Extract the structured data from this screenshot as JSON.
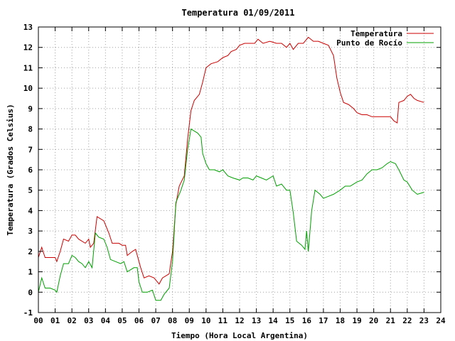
{
  "chart_data": {
    "type": "line",
    "title": "Temperatura 01/09/2011",
    "xlabel": "Tiempo (Hora Local Argentina)",
    "ylabel": "Temperatura (Grados Celsius)",
    "xlim": [
      0,
      24
    ],
    "ylim": [
      -1,
      13
    ],
    "x_ticks": [
      0,
      1,
      2,
      3,
      4,
      5,
      6,
      7,
      8,
      9,
      10,
      11,
      12,
      13,
      14,
      15,
      16,
      17,
      18,
      19,
      20,
      21,
      22,
      23,
      24
    ],
    "x_tick_labels": [
      "00",
      "01",
      "02",
      "03",
      "04",
      "05",
      "06",
      "07",
      "08",
      "09",
      "10",
      "11",
      "12",
      "13",
      "14",
      "15",
      "16",
      "17",
      "18",
      "19",
      "20",
      "21",
      "22",
      "23",
      "24"
    ],
    "y_ticks": [
      -1,
      0,
      1,
      2,
      3,
      4,
      5,
      6,
      7,
      8,
      9,
      10,
      11,
      12,
      13
    ],
    "y_tick_labels": [
      "-1",
      "0",
      "1",
      "2",
      "3",
      "4",
      "5",
      "6",
      "7",
      "8",
      "9",
      "10",
      "11",
      "12",
      "13"
    ],
    "grid": true,
    "legend_position": "top-right",
    "series": [
      {
        "name": "Temperatura",
        "color": "#cc0000",
        "points": [
          [
            0.0,
            1.7
          ],
          [
            0.2,
            2.2
          ],
          [
            0.4,
            1.7
          ],
          [
            0.6,
            1.7
          ],
          [
            1.0,
            1.7
          ],
          [
            1.1,
            1.5
          ],
          [
            1.3,
            2.0
          ],
          [
            1.5,
            2.6
          ],
          [
            1.8,
            2.5
          ],
          [
            2.0,
            2.8
          ],
          [
            2.2,
            2.8
          ],
          [
            2.4,
            2.6
          ],
          [
            2.8,
            2.4
          ],
          [
            3.0,
            2.6
          ],
          [
            3.1,
            2.2
          ],
          [
            3.3,
            2.4
          ],
          [
            3.5,
            3.7
          ],
          [
            3.9,
            3.5
          ],
          [
            4.2,
            2.9
          ],
          [
            4.4,
            2.4
          ],
          [
            4.8,
            2.4
          ],
          [
            5.0,
            2.3
          ],
          [
            5.2,
            2.3
          ],
          [
            5.3,
            1.8
          ],
          [
            5.6,
            2.0
          ],
          [
            5.8,
            2.1
          ],
          [
            6.0,
            1.5
          ],
          [
            6.1,
            1.2
          ],
          [
            6.3,
            0.7
          ],
          [
            6.6,
            0.8
          ],
          [
            6.9,
            0.7
          ],
          [
            7.0,
            0.6
          ],
          [
            7.2,
            0.4
          ],
          [
            7.4,
            0.7
          ],
          [
            7.8,
            0.9
          ],
          [
            8.0,
            2.0
          ],
          [
            8.2,
            4.3
          ],
          [
            8.4,
            5.2
          ],
          [
            8.7,
            5.7
          ],
          [
            8.9,
            7.5
          ],
          [
            9.1,
            8.9
          ],
          [
            9.3,
            9.4
          ],
          [
            9.6,
            9.7
          ],
          [
            9.8,
            10.3
          ],
          [
            10.0,
            11.0
          ],
          [
            10.3,
            11.2
          ],
          [
            10.7,
            11.3
          ],
          [
            11.0,
            11.5
          ],
          [
            11.3,
            11.6
          ],
          [
            11.5,
            11.8
          ],
          [
            11.8,
            11.9
          ],
          [
            12.0,
            12.1
          ],
          [
            12.3,
            12.2
          ],
          [
            12.6,
            12.2
          ],
          [
            12.9,
            12.2
          ],
          [
            13.1,
            12.4
          ],
          [
            13.4,
            12.2
          ],
          [
            13.8,
            12.3
          ],
          [
            14.2,
            12.2
          ],
          [
            14.5,
            12.2
          ],
          [
            14.8,
            12.0
          ],
          [
            15.0,
            12.2
          ],
          [
            15.2,
            11.9
          ],
          [
            15.5,
            12.2
          ],
          [
            15.8,
            12.2
          ],
          [
            16.1,
            12.5
          ],
          [
            16.4,
            12.3
          ],
          [
            16.7,
            12.3
          ],
          [
            17.0,
            12.2
          ],
          [
            17.3,
            12.1
          ],
          [
            17.6,
            11.6
          ],
          [
            17.8,
            10.5
          ],
          [
            18.0,
            9.8
          ],
          [
            18.2,
            9.3
          ],
          [
            18.5,
            9.2
          ],
          [
            18.8,
            9.0
          ],
          [
            19.0,
            8.8
          ],
          [
            19.3,
            8.7
          ],
          [
            19.6,
            8.7
          ],
          [
            19.9,
            8.6
          ],
          [
            20.3,
            8.6
          ],
          [
            20.7,
            8.6
          ],
          [
            21.0,
            8.6
          ],
          [
            21.2,
            8.4
          ],
          [
            21.4,
            8.3
          ],
          [
            21.5,
            9.3
          ],
          [
            21.8,
            9.4
          ],
          [
            22.0,
            9.6
          ],
          [
            22.2,
            9.7
          ],
          [
            22.4,
            9.5
          ],
          [
            22.6,
            9.4
          ],
          [
            23.0,
            9.3
          ]
        ]
      },
      {
        "name": "Punto de Rocío",
        "color": "#00a000",
        "points": [
          [
            0.0,
            0.0
          ],
          [
            0.2,
            0.7
          ],
          [
            0.4,
            0.2
          ],
          [
            0.7,
            0.2
          ],
          [
            1.0,
            0.1
          ],
          [
            1.1,
            0.0
          ],
          [
            1.3,
            0.8
          ],
          [
            1.5,
            1.4
          ],
          [
            1.8,
            1.4
          ],
          [
            2.0,
            1.8
          ],
          [
            2.2,
            1.7
          ],
          [
            2.4,
            1.5
          ],
          [
            2.6,
            1.4
          ],
          [
            2.8,
            1.2
          ],
          [
            3.0,
            1.5
          ],
          [
            3.2,
            1.2
          ],
          [
            3.4,
            2.9
          ],
          [
            3.6,
            2.7
          ],
          [
            3.9,
            2.6
          ],
          [
            4.1,
            2.2
          ],
          [
            4.3,
            1.6
          ],
          [
            4.6,
            1.5
          ],
          [
            4.9,
            1.4
          ],
          [
            5.1,
            1.5
          ],
          [
            5.3,
            1.0
          ],
          [
            5.7,
            1.2
          ],
          [
            5.9,
            1.2
          ],
          [
            6.0,
            0.5
          ],
          [
            6.2,
            0.0
          ],
          [
            6.5,
            0.0
          ],
          [
            6.8,
            0.1
          ],
          [
            7.0,
            -0.4
          ],
          [
            7.3,
            -0.4
          ],
          [
            7.5,
            -0.1
          ],
          [
            7.8,
            0.2
          ],
          [
            8.0,
            1.5
          ],
          [
            8.2,
            4.4
          ],
          [
            8.5,
            5.0
          ],
          [
            8.7,
            5.5
          ],
          [
            8.9,
            7.0
          ],
          [
            9.1,
            8.0
          ],
          [
            9.3,
            7.9
          ],
          [
            9.5,
            7.8
          ],
          [
            9.7,
            7.6
          ],
          [
            9.8,
            6.8
          ],
          [
            10.0,
            6.3
          ],
          [
            10.2,
            6.0
          ],
          [
            10.5,
            6.0
          ],
          [
            10.8,
            5.9
          ],
          [
            11.0,
            6.0
          ],
          [
            11.3,
            5.7
          ],
          [
            11.6,
            5.6
          ],
          [
            12.0,
            5.5
          ],
          [
            12.2,
            5.6
          ],
          [
            12.5,
            5.6
          ],
          [
            12.8,
            5.5
          ],
          [
            13.0,
            5.7
          ],
          [
            13.3,
            5.6
          ],
          [
            13.6,
            5.5
          ],
          [
            14.0,
            5.7
          ],
          [
            14.2,
            5.2
          ],
          [
            14.5,
            5.3
          ],
          [
            14.8,
            5.0
          ],
          [
            15.0,
            5.0
          ],
          [
            15.2,
            3.9
          ],
          [
            15.4,
            2.5
          ],
          [
            15.7,
            2.3
          ],
          [
            15.9,
            2.1
          ],
          [
            16.0,
            3.0
          ],
          [
            16.1,
            2.0
          ],
          [
            16.3,
            4.0
          ],
          [
            16.5,
            5.0
          ],
          [
            16.8,
            4.8
          ],
          [
            17.0,
            4.6
          ],
          [
            17.3,
            4.7
          ],
          [
            17.6,
            4.8
          ],
          [
            17.8,
            4.9
          ],
          [
            18.0,
            5.0
          ],
          [
            18.3,
            5.2
          ],
          [
            18.6,
            5.2
          ],
          [
            18.8,
            5.3
          ],
          [
            19.0,
            5.4
          ],
          [
            19.3,
            5.5
          ],
          [
            19.6,
            5.8
          ],
          [
            19.9,
            6.0
          ],
          [
            20.2,
            6.0
          ],
          [
            20.5,
            6.1
          ],
          [
            20.8,
            6.3
          ],
          [
            21.0,
            6.4
          ],
          [
            21.3,
            6.3
          ],
          [
            21.5,
            6.0
          ],
          [
            21.8,
            5.5
          ],
          [
            22.0,
            5.4
          ],
          [
            22.3,
            5.0
          ],
          [
            22.6,
            4.8
          ],
          [
            23.0,
            4.9
          ]
        ]
      }
    ]
  }
}
